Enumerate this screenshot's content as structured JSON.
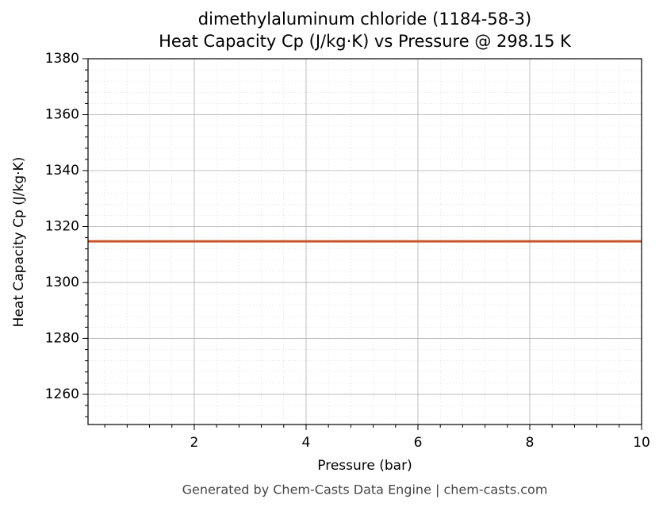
{
  "chart_data": {
    "type": "line",
    "title": "dimethylaluminum chloride (1184-58-3)",
    "subtitle": "Heat Capacity Cp (J/kg·K) vs Pressure @ 298.15 K",
    "x_label": "Pressure (bar)",
    "y_label": "Heat Capacity Cp (J/kg·K)",
    "footer": "Generated by Chem-Casts Data Engine | chem-casts.com",
    "x": [
      0.1,
      10
    ],
    "series": [
      {
        "name": "Cp",
        "color": "#c8552b",
        "values": [
          1314.7,
          1314.7
        ]
      }
    ],
    "xlim": [
      0.1,
      10
    ],
    "xticks": [
      2,
      4,
      6,
      8,
      10
    ],
    "ylim": [
      1249.2,
      1380
    ],
    "yticks": [
      1260,
      1280,
      1300,
      1320,
      1340,
      1360,
      1380
    ],
    "grid": true,
    "minor_grid": true
  }
}
